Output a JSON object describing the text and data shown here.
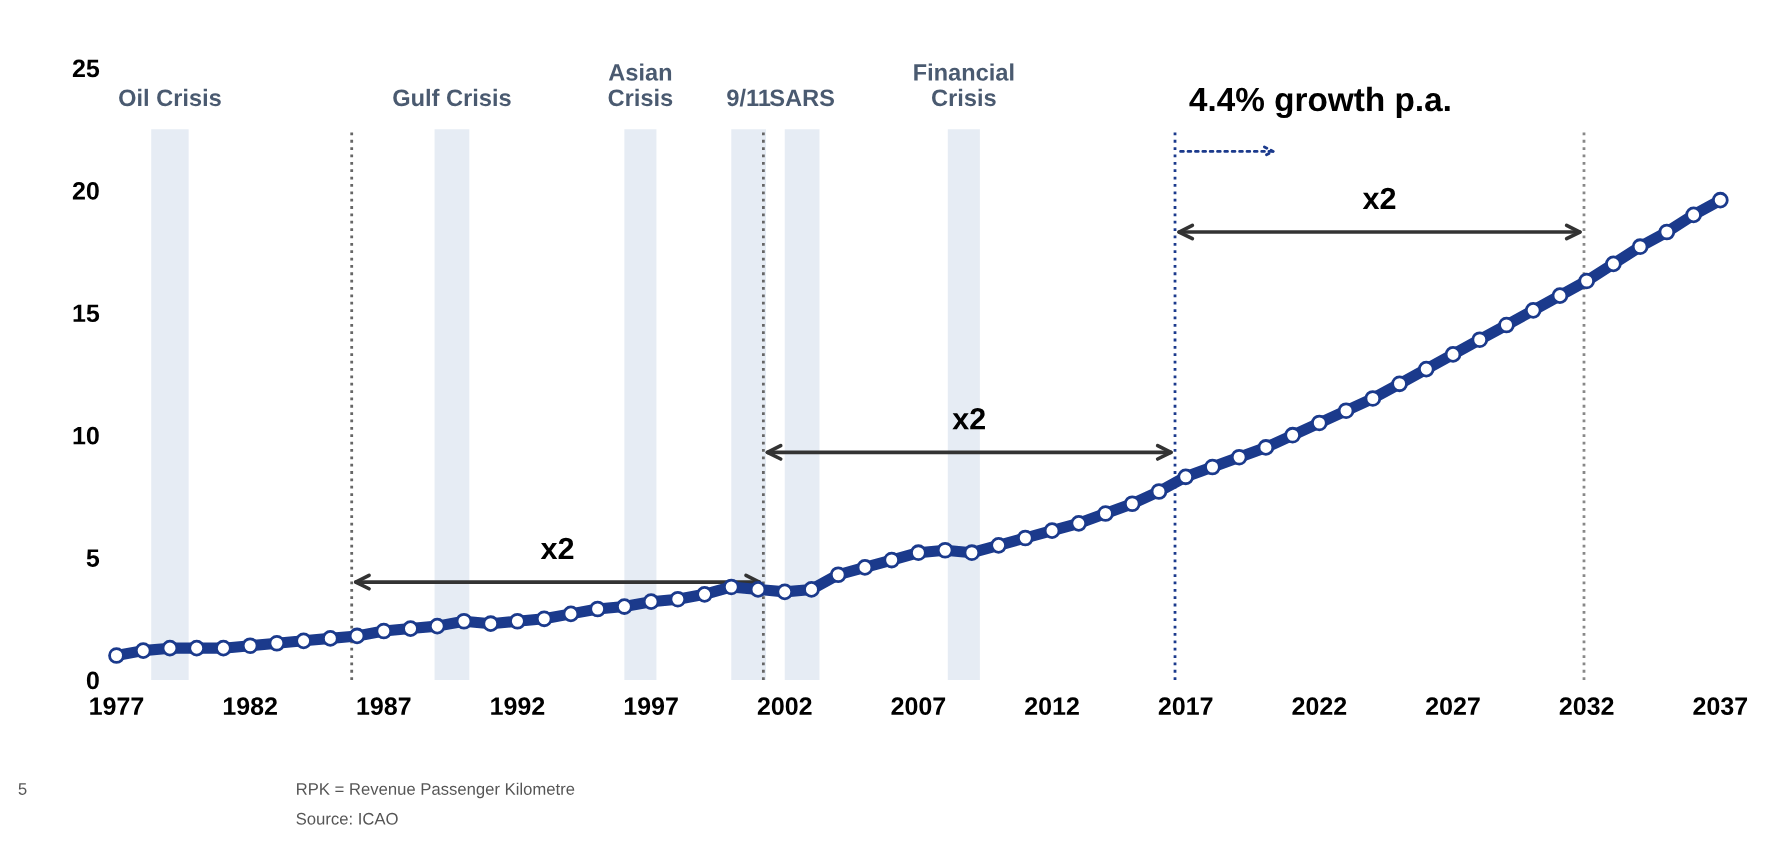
{
  "chart_data": {
    "type": "line",
    "x": [
      1977,
      1978,
      1979,
      1980,
      1981,
      1982,
      1983,
      1984,
      1985,
      1986,
      1987,
      1988,
      1989,
      1990,
      1991,
      1992,
      1993,
      1994,
      1995,
      1996,
      1997,
      1998,
      1999,
      2000,
      2001,
      2002,
      2003,
      2004,
      2005,
      2006,
      2007,
      2008,
      2009,
      2010,
      2011,
      2012,
      2013,
      2014,
      2015,
      2016,
      2017,
      2018,
      2019,
      2020,
      2021,
      2022,
      2023,
      2024,
      2025,
      2026,
      2027,
      2028,
      2029,
      2030,
      2031,
      2032,
      2033,
      2034,
      2035,
      2036,
      2037
    ],
    "series": [
      {
        "color": "#1b3a8c",
        "marker": "circle",
        "values": [
          1.0,
          1.2,
          1.3,
          1.3,
          1.3,
          1.4,
          1.5,
          1.6,
          1.7,
          1.8,
          2.0,
          2.1,
          2.2,
          2.4,
          2.3,
          2.4,
          2.5,
          2.7,
          2.9,
          3.0,
          3.2,
          3.3,
          3.5,
          3.8,
          3.7,
          3.6,
          3.7,
          4.3,
          4.6,
          4.9,
          5.2,
          5.3,
          5.2,
          5.5,
          5.8,
          6.1,
          6.4,
          6.8,
          7.2,
          7.7,
          8.3,
          8.7,
          9.1,
          9.5,
          10.0,
          10.5,
          11.0,
          11.5,
          12.1,
          12.7,
          13.3,
          13.9,
          14.5,
          15.1,
          15.7,
          16.3,
          17.0,
          17.7,
          18.3,
          19.0,
          19.6
        ]
      }
    ],
    "xlim": [
      1977,
      2037
    ],
    "ylim": [
      0,
      25
    ],
    "xticks": [
      1977,
      1982,
      1987,
      1992,
      1997,
      2002,
      2007,
      2012,
      2017,
      2022,
      2027,
      2032,
      2037
    ],
    "yticks": [
      0,
      5,
      10,
      15,
      20,
      25
    ],
    "line_style": "solid",
    "grid": false,
    "bands": [
      {
        "axis": "x",
        "from": 1978.3,
        "to": 1979.7,
        "label": "Oil Crisis",
        "color": "#e6ecf4"
      },
      {
        "axis": "x",
        "from": 1988.9,
        "to": 1990.2,
        "label": "Gulf Crisis",
        "color": "#e6ecf4"
      },
      {
        "axis": "x",
        "from": 1996.0,
        "to": 1997.2,
        "label": "Asian\nCrisis",
        "color": "#e6ecf4"
      },
      {
        "axis": "x",
        "from": 2000.0,
        "to": 2001.3,
        "label": "9/11",
        "color": "#e6ecf4"
      },
      {
        "axis": "x",
        "from": 2002.0,
        "to": 2003.3,
        "label": "SARS",
        "color": "#e6ecf4"
      },
      {
        "axis": "x",
        "from": 2008.1,
        "to": 2009.3,
        "label": "Financial\nCrisis",
        "color": "#e6ecf4"
      }
    ],
    "ref_lines": [
      {
        "axis": "x",
        "value": 1985.8,
        "line_style": "dotted",
        "color": "#666666"
      },
      {
        "axis": "x",
        "value": 2001.2,
        "line_style": "dotted",
        "color": "#666666"
      },
      {
        "axis": "x",
        "value": 2016.6,
        "line_style": "dotted",
        "color": "#1b3a8c"
      },
      {
        "axis": "x",
        "value": 2031.9,
        "line_style": "dotted",
        "color": "#888888"
      }
    ],
    "annotations": [
      "x2",
      "x2",
      "x2",
      "4.4% growth p.a.",
      "RPK = Revenue Passenger Kilometre",
      "Source: ICAO",
      "5"
    ]
  }
}
